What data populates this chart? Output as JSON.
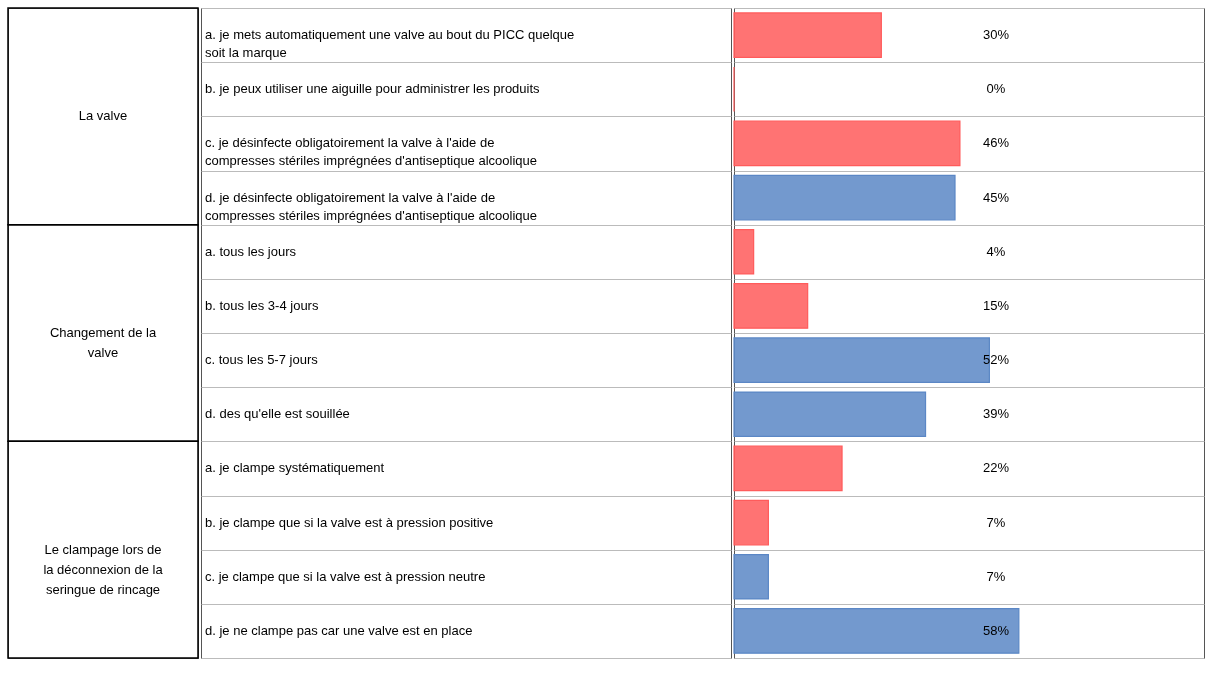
{
  "chart_data": {
    "type": "bar",
    "orientation": "horizontal",
    "categories": [
      "a. je mets automatiquement une valve au bout du PICC quelque soit la marque",
      "b. je peux utiliser une aiguille pour administrer les produits",
      "c. je désinfecte obligatoirement la valve à l'aide de compresses stériles imprégnées d'antiseptique alcoolique",
      "d. je désinfecte obligatoirement la valve à l'aide de compresses stériles imprégnées d'antiseptique alcoolique",
      "a. tous les jours",
      "b. tous les 3-4 jours",
      "c. tous les 5-7 jours",
      "d. des qu'elle est souillée",
      "a. je clampe systématiquement",
      "b. je clampe que si la valve est à pression positive",
      "c. je clampe que si la valve est à pression neutre",
      "d. je ne clampe pas car une valve est en place"
    ],
    "values": [
      30,
      0,
      46,
      45,
      4,
      15,
      52,
      39,
      22,
      7,
      7,
      58
    ],
    "value_labels": [
      "30%",
      "0%",
      "46%",
      "45%",
      "4%",
      "15%",
      "52%",
      "39%",
      "22%",
      "7%",
      "7%",
      "58%"
    ],
    "colors": [
      "#ff5b5b",
      "#ff5b5b",
      "#ff5b5b",
      "#5b87c5",
      "#ff5b5b",
      "#ff5b5b",
      "#5b87c5",
      "#5b87c5",
      "#ff5b5b",
      "#ff5b5b",
      "#5b87c5",
      "#5b87c5"
    ],
    "annotations": [
      "La valve",
      "Changement de la valve",
      "Le clampage lors de la déconnexion de la seringue de rincage"
    ]
  }
}
